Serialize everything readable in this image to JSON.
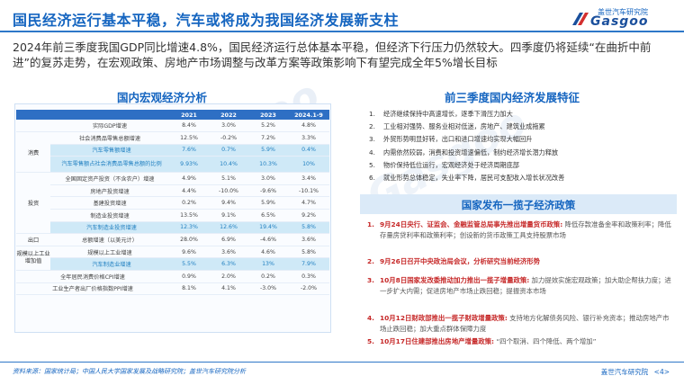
{
  "header": {
    "title": "国民经济运行基本平稳，汽车或将成为我国经济发展新支柱",
    "logo_cn": "盖世汽车研究院",
    "logo_en": "Gasgoo"
  },
  "intro": "2024年前三季度我国GDP同比增速4.8%，国民经济运行总体基本平稳，但经济下行压力仍然较大。四季度仍将延续“在曲折中前进”的复苏走势，在宏观政策、房地产市场调整与改革方案等政策影响下有望完成全年5%增长目标",
  "macro": {
    "section_title": "国内宏观经济分析",
    "headers": [
      "2021",
      "2022",
      "2023",
      "2024.1-9"
    ],
    "cats": {
      "consume": "消费",
      "invest": "投资",
      "export": "出口",
      "industry": "规模以上工业增加值"
    },
    "rows": [
      {
        "name": "实际GDP增速",
        "values": [
          "8.4%",
          "3.0%",
          "5.2%",
          "4.8%"
        ]
      },
      {
        "name": "社会消费品零售总额增速",
        "values": [
          "12.5%",
          "-0.2%",
          "7.2%",
          "3.3%"
        ]
      },
      {
        "name": "汽车零售额增速",
        "values": [
          "7.6%",
          "0.7%",
          "5.9%",
          "0.4%"
        ]
      },
      {
        "name": "汽车零售额占社会消费品零售总额的比例",
        "values": [
          "9.93%",
          "10.4%",
          "10.3%",
          "10%"
        ]
      },
      {
        "name": "全国固定资产投资（不含农户）增速",
        "values": [
          "4.9%",
          "5.1%",
          "3.0%",
          "3.4%"
        ]
      },
      {
        "name": "房地产投资增速",
        "values": [
          "4.4%",
          "-10.0%",
          "-9.6%",
          "-10.1%"
        ]
      },
      {
        "name": "基建投资增速",
        "values": [
          "0.2%",
          "9.4%",
          "5.9%",
          "4.7%"
        ]
      },
      {
        "name": "制造业投资增速",
        "values": [
          "13.5%",
          "9.1%",
          "6.5%",
          "9.2%"
        ]
      },
      {
        "name": "汽车制造业投资增速",
        "values": [
          "12.3%",
          "12.6%",
          "19.4%",
          "5.8%"
        ]
      },
      {
        "name": "总额增速（以美元计）",
        "values": [
          "28.0%",
          "6.9%",
          "-4.6%",
          "3.6%"
        ]
      },
      {
        "name": "规模以上工业增速",
        "values": [
          "9.6%",
          "3.6%",
          "4.6%",
          "5.8%"
        ]
      },
      {
        "name": "汽车制造业增速",
        "values": [
          "5.5%",
          "6.3%",
          "13%",
          "7.9%"
        ]
      },
      {
        "name": "全年居民消费价格CPI增速",
        "values": [
          "0.9%",
          "2.0%",
          "0.2%",
          "0.3%"
        ]
      },
      {
        "name": "工业生产者出厂价格指数PPI增速",
        "values": [
          "8.1%",
          "4.1%",
          "-3.0%",
          "-2.0%"
        ]
      }
    ]
  },
  "features": {
    "section_title": "前三季度国内经济发展特征",
    "items": [
      {
        "num": "1.",
        "text": "经济继续保持中高速增长，逐季下滑压力加大"
      },
      {
        "num": "2.",
        "text": "工业相对强势、服务业相对低迷，房地产、建筑业成拖累"
      },
      {
        "num": "3.",
        "text": "外贸形势明显好转，出口和进口增速均实现大幅回升"
      },
      {
        "num": "4.",
        "text": "内需依然较弱，消费和投资增速偏低，制约经济增长潜力释放"
      },
      {
        "num": "5.",
        "text": "物价保持低位运行，宏观经济处于经济周期底部"
      },
      {
        "num": "6.",
        "text": "就业形势总体稳定，失业率下降，居民可支配收入增长状况改善"
      }
    ]
  },
  "policies": {
    "section_title": "国家发布一揽子经济政策",
    "items": [
      {
        "num": "1.",
        "head": "9月24日央行、证监会、金融监管总局事先推出增量货币政策:",
        "body": " 降低存款准备金率和政策利率；降低存量房贷利率和政策利率；创设新的货币政策工具支持股票市场"
      },
      {
        "num": "2.",
        "head": "9月26日召开中央政治局会议，分析研究当前经济形势",
        "body": ""
      },
      {
        "num": "3.",
        "head": "10月8日国家发改委推动加力推出一揽子增量政策:",
        "body": " 加力提效实施宏观政策；加大助企帮扶力度；进一步扩大内需；促进房地产市场止跌回稳；提振资本市场"
      },
      {
        "num": "4.",
        "head": "10月12日财政部推出一揽子财政增量政策:",
        "body": " 支持地方化解债务风险、银行补充资本；推动房地产市场止跌回稳；加大重点群体保障力度"
      },
      {
        "num": "5.",
        "head": "10月17日住建部推出房地产增量政策:",
        "body": " “四个取消、四个降低、两个增加”"
      }
    ]
  },
  "footer": {
    "source": "资料来源：国家统计局；中国人民大学国家发展及战略研究院；盖世汽车研究院分析",
    "brand": "盖世汽车研究院",
    "page": "<4>"
  },
  "colors": {
    "accent": "#1565c0",
    "highlight": "#cfe9f7",
    "policy_head": "#c62828"
  }
}
